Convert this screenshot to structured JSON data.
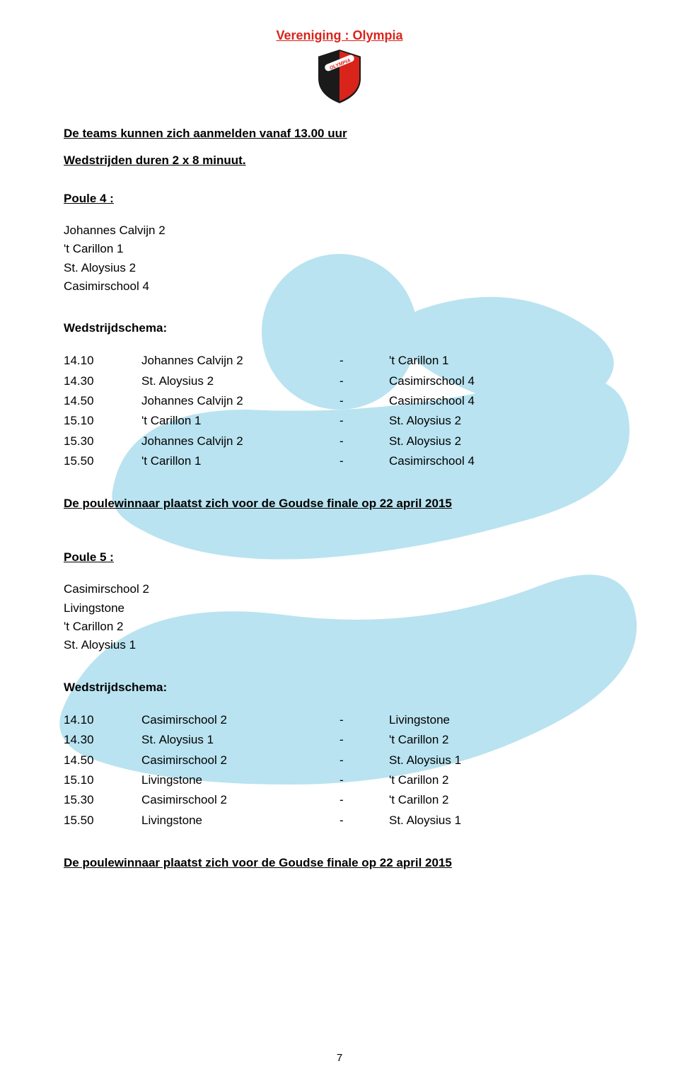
{
  "header_title": "Vereniging : Olympia",
  "intro_line1": "De teams kunnen zich aanmelden vanaf 13.00 uur",
  "intro_line2": "Wedstrijden duren 2 x 8 minuut.",
  "poule4": {
    "label": "Poule 4 :",
    "teams": [
      "Johannes Calvijn 2",
      "'t Carillon 1",
      "St. Aloysius 2",
      "Casimirschool 4"
    ]
  },
  "ws_label": "Wedstrijdschema:",
  "schedule1": [
    {
      "time": "14.10",
      "t1": "Johannes Calvijn 2",
      "t2": "'t Carillon 1"
    },
    {
      "time": "14.30",
      "t1": "St. Aloysius 2",
      "t2": "Casimirschool 4"
    },
    {
      "time": "14.50",
      "t1": "Johannes Calvijn 2",
      "t2": "Casimirschool 4"
    },
    {
      "time": "15.10",
      "t1": "'t Carillon 1",
      "t2": "St. Aloysius 2"
    },
    {
      "time": "15.30",
      "t1": "Johannes Calvijn 2",
      "t2": "St. Aloysius 2"
    },
    {
      "time": "15.50",
      "t1": "'t Carillon 1",
      "t2": "Casimirschool 4"
    }
  ],
  "winner_text": "De poulewinnaar plaatst zich voor de Goudse finale op 22 april 2015",
  "poule5": {
    "label": "Poule 5 :",
    "teams": [
      "Casimirschool 2",
      "Livingstone",
      "'t Carillon 2",
      "St. Aloysius 1"
    ]
  },
  "schedule2": [
    {
      "time": "14.10",
      "t1": "Casimirschool 2",
      "t2": "Livingstone"
    },
    {
      "time": "14.30",
      "t1": "St. Aloysius 1",
      "t2": "'t Carillon 2"
    },
    {
      "time": "14.50",
      "t1": "Casimirschool 2",
      "t2": "St. Aloysius 1"
    },
    {
      "time": "15.10",
      "t1": "Livingstone",
      "t2": "'t Carillon 2"
    },
    {
      "time": "15.30",
      "t1": "Casimirschool 2",
      "t2": "'t Carillon 2"
    },
    {
      "time": "15.50",
      "t1": "Livingstone",
      "t2": "St. Aloysius 1"
    }
  ],
  "page_number": "7",
  "colors": {
    "accent": "#d9241b",
    "bg_figure": "#b9e3f0"
  }
}
